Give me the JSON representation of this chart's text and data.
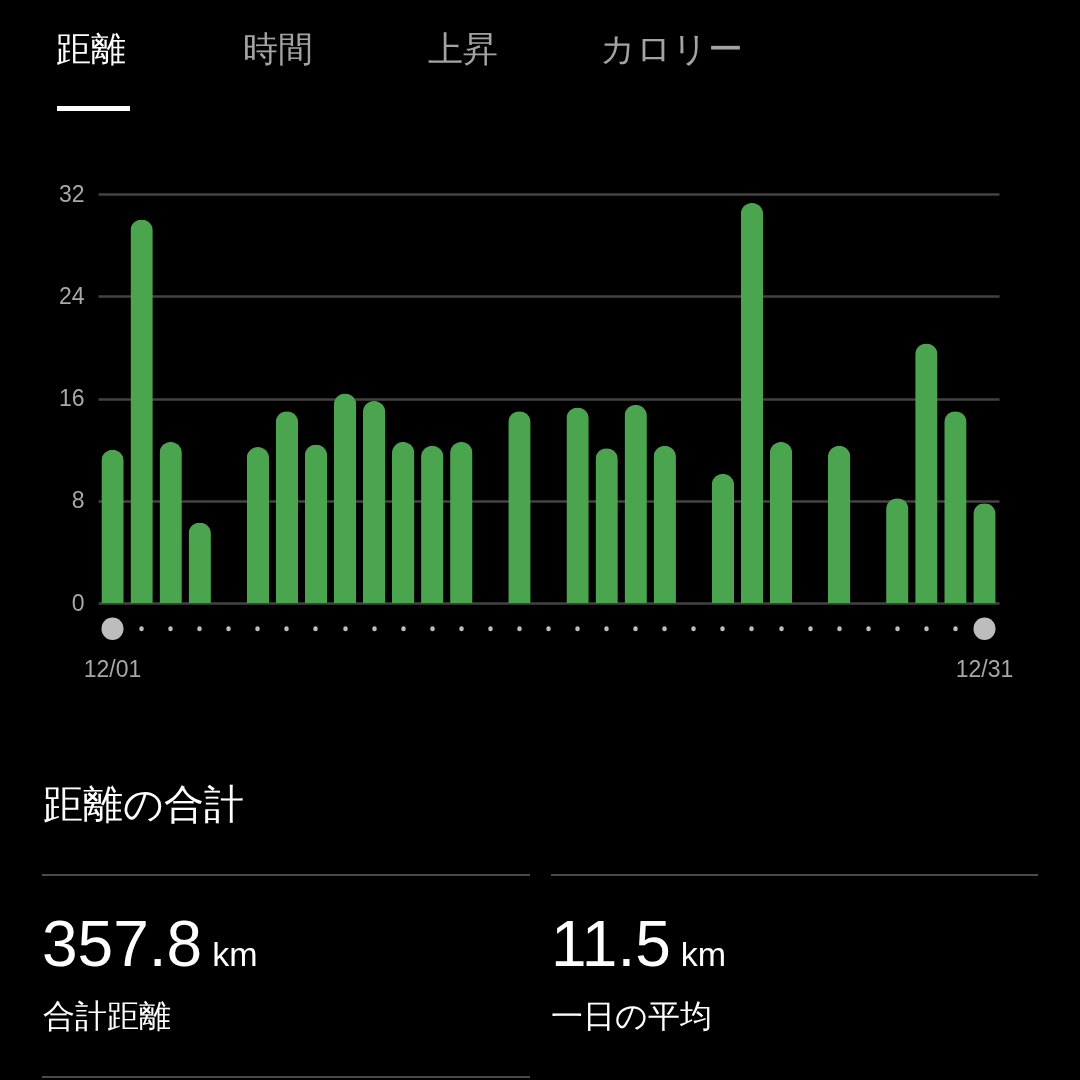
{
  "chart_data": {
    "type": "bar",
    "categories": [
      "12/01",
      null,
      null,
      null,
      null,
      null,
      null,
      null,
      null,
      null,
      null,
      null,
      null,
      null,
      null,
      null,
      null,
      null,
      null,
      null,
      null,
      null,
      null,
      null,
      null,
      null,
      null,
      null,
      null,
      null,
      "12/31"
    ],
    "values": [
      12.0,
      30.0,
      12.6,
      6.3,
      null,
      12.2,
      15.0,
      12.4,
      16.4,
      15.8,
      12.6,
      12.3,
      12.6,
      null,
      15.0,
      null,
      15.3,
      12.1,
      15.5,
      12.3,
      null,
      10.1,
      31.3,
      12.6,
      null,
      12.3,
      null,
      8.2,
      20.3,
      15.0,
      7.8
    ],
    "color": "#4ba54f",
    "ylim": [
      0,
      32
    ],
    "yticks": [
      0,
      8,
      16,
      24,
      32
    ],
    "grid": "y",
    "annotations": [
      "距離",
      "時間",
      "上昇",
      "カロリー",
      "距離の合計",
      "357.8",
      "km",
      "合計距離",
      "11.5",
      "km",
      "一日の平均"
    ]
  }
}
